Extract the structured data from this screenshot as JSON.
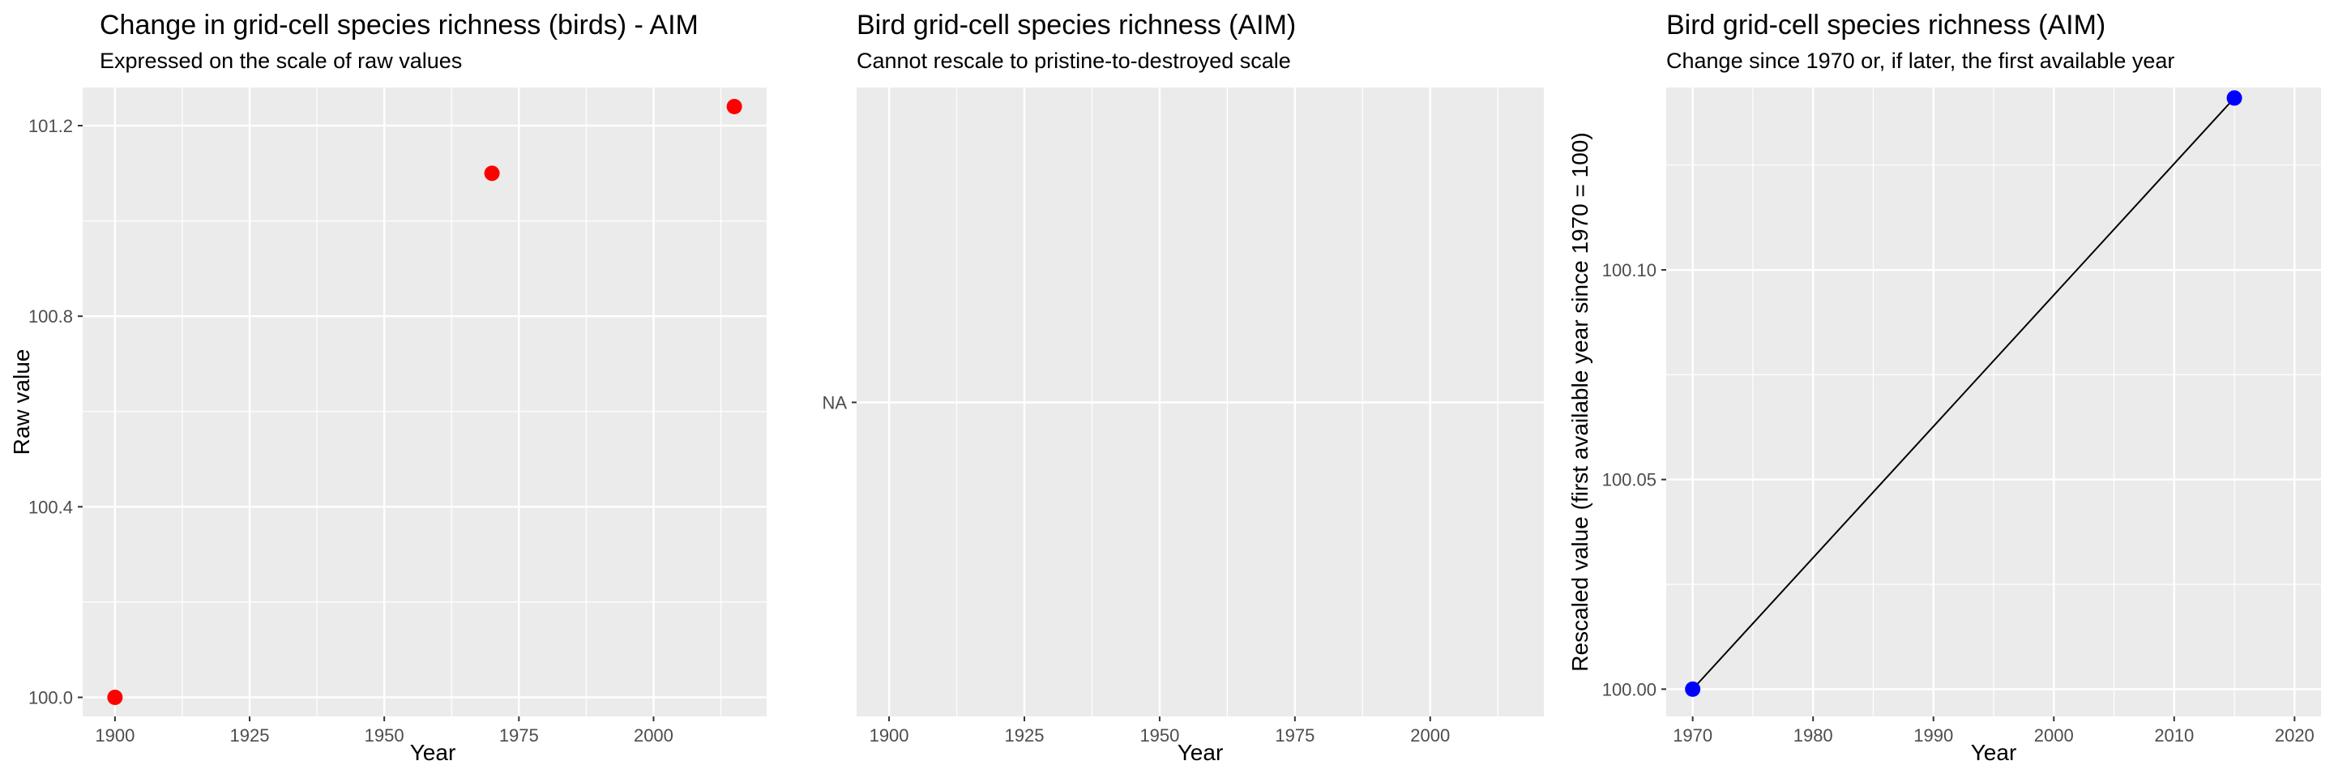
{
  "figure": {
    "panel_background": "#ebebeb",
    "grid_color": "#ffffff",
    "tick_color": "#333333"
  },
  "chart_data": [
    {
      "type": "scatter",
      "title": "Change in grid-cell species richness (birds) - AIM",
      "subtitle": "Expressed on the scale of raw values",
      "xlabel": "Year",
      "ylabel": "Raw value",
      "xlim": [
        1894,
        2021
      ],
      "ylim": [
        99.96,
        101.28
      ],
      "x_ticks": [
        1900,
        1925,
        1950,
        1975,
        2000
      ],
      "y_ticks": [
        100.0,
        100.4,
        100.8,
        101.2
      ],
      "y_tick_labels": [
        "100.0",
        "100.4",
        "100.8",
        "101.2"
      ],
      "grid": true,
      "point_color": "#ff0000",
      "line": false,
      "series": [
        {
          "x": [
            1900,
            1970,
            2015
          ],
          "y": [
            100.0,
            101.1,
            101.24
          ]
        }
      ]
    },
    {
      "type": "scatter",
      "title": "Bird grid-cell species richness (AIM)",
      "subtitle": "Cannot rescale to pristine-to-destroyed scale",
      "xlabel": "Year",
      "ylabel": "",
      "xlim": [
        1894,
        2021
      ],
      "x_ticks": [
        1900,
        1925,
        1950,
        1975,
        2000
      ],
      "y_tick_labels": [
        "NA"
      ],
      "grid": true,
      "series": []
    },
    {
      "type": "line",
      "title": "Bird grid-cell species richness (AIM)",
      "subtitle": "Change since 1970 or, if later, the first available year",
      "xlabel": "Year",
      "ylabel": "Rescaled value (first available year since 1970 = 100)",
      "xlim": [
        1967.8,
        2022.2
      ],
      "ylim": [
        99.9935,
        100.1435
      ],
      "x_ticks": [
        1970,
        1980,
        1990,
        2000,
        2010,
        2020
      ],
      "y_ticks": [
        100.0,
        100.05,
        100.1
      ],
      "y_tick_labels": [
        "100.00",
        "100.05",
        "100.10"
      ],
      "grid": true,
      "point_color": "#0000ff",
      "line_color": "#000000",
      "line": true,
      "series": [
        {
          "x": [
            1970,
            2015
          ],
          "y": [
            100.0,
            100.141
          ]
        }
      ]
    }
  ]
}
